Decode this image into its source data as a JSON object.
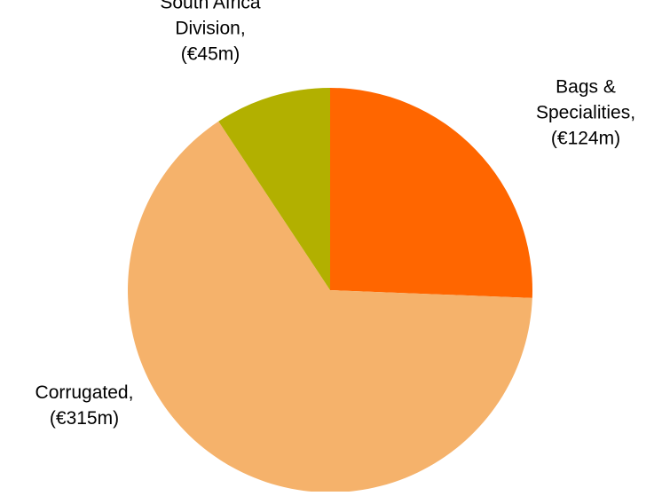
{
  "chart_data": {
    "type": "pie",
    "start_angle_deg": 0,
    "direction": "clockwise",
    "slices": [
      {
        "label_lines": [
          "Bags &",
          "Specialities,",
          "(€124m)"
        ],
        "value": 124,
        "color": "#FF6600"
      },
      {
        "label_lines": [
          "Corrugated,",
          "(€315m)"
        ],
        "value": 315,
        "color": "#F5B26B"
      },
      {
        "label_lines": [
          "South Africa",
          "Division,",
          "(€45m)"
        ],
        "value": 45,
        "color": "#B2B000"
      }
    ]
  }
}
